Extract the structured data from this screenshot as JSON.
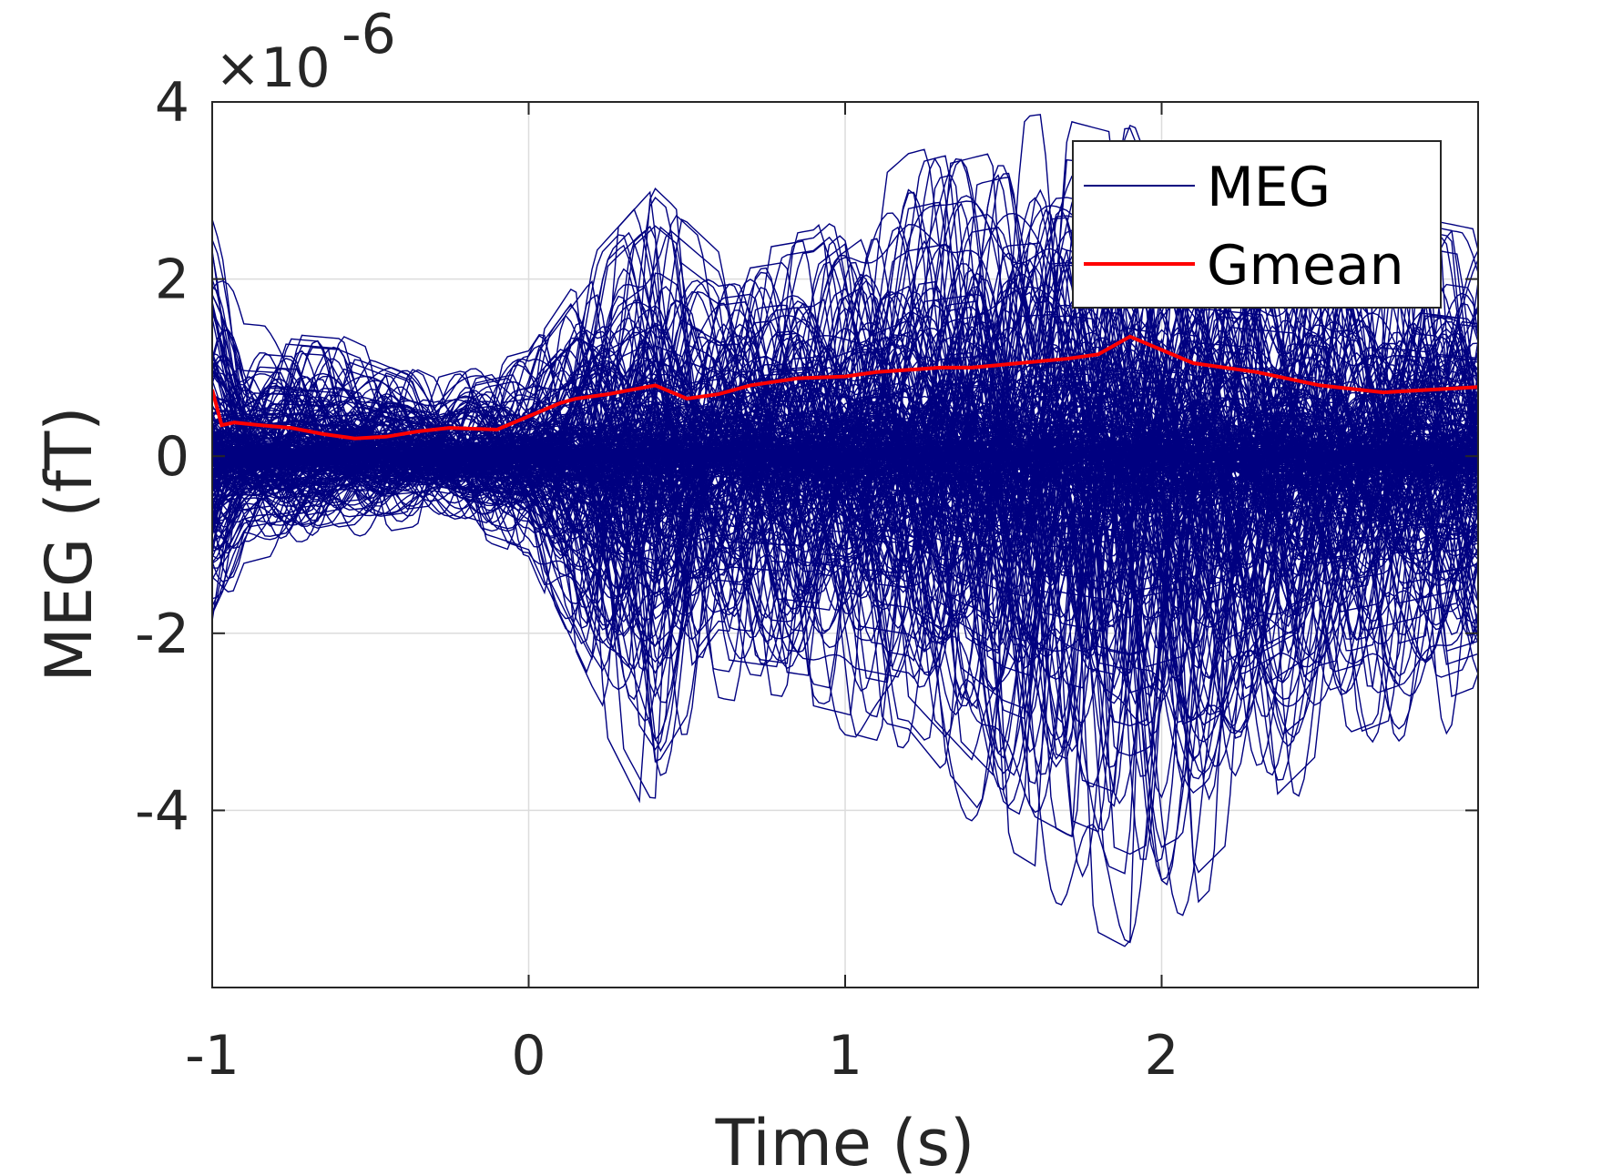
{
  "chart_data": {
    "type": "line",
    "xlabel": "Time (s)",
    "ylabel": "MEG (fT)",
    "y_exponent_label": "×10",
    "y_exponent_power": "-6",
    "xlim": [
      -1,
      3
    ],
    "ylim": [
      -6,
      4
    ],
    "x_ticks": [
      -1,
      0,
      1,
      2
    ],
    "x_tick_labels": [
      "-1",
      "0",
      "1",
      "2"
    ],
    "y_ticks": [
      -4,
      -2,
      0,
      2,
      4
    ],
    "y_tick_labels": [
      "-4",
      "-2",
      "0",
      "2",
      "4"
    ],
    "grid": true,
    "legend_position": "top-right",
    "legend": {
      "meg_label": "MEG",
      "gmean_label": "Gmean"
    },
    "colors": {
      "meg": "#000080",
      "gmean": "#ff0000",
      "grid": "#dcdcdc",
      "axis": "#262626"
    },
    "series": [
      {
        "name": "Gmean",
        "x": [
          -1.0,
          -0.97,
          -0.93,
          -0.85,
          -0.75,
          -0.65,
          -0.55,
          -0.45,
          -0.35,
          -0.25,
          -0.1,
          0.0,
          0.1,
          0.15,
          0.25,
          0.4,
          0.5,
          0.6,
          0.7,
          0.85,
          1.0,
          1.1,
          1.3,
          1.4,
          1.55,
          1.7,
          1.8,
          1.9,
          2.0,
          2.1,
          2.3,
          2.5,
          2.7,
          3.0
        ],
        "y": [
          0.75,
          0.35,
          0.38,
          0.35,
          0.32,
          0.25,
          0.2,
          0.22,
          0.28,
          0.32,
          0.3,
          0.45,
          0.6,
          0.65,
          0.7,
          0.8,
          0.65,
          0.7,
          0.8,
          0.88,
          0.9,
          0.95,
          1.0,
          1.0,
          1.05,
          1.1,
          1.15,
          1.35,
          1.2,
          1.05,
          0.95,
          0.8,
          0.72,
          0.78
        ]
      },
      {
        "name": "MEG",
        "envelope_time": [
          -1.0,
          -0.9,
          -0.6,
          -0.3,
          0.0,
          0.2,
          0.4,
          0.6,
          0.9,
          1.2,
          1.5,
          1.7,
          1.9,
          2.1,
          2.5,
          3.0
        ],
        "envelope_upper": [
          2.7,
          1.5,
          1.4,
          0.9,
          1.2,
          2.3,
          3.1,
          2.4,
          2.6,
          3.6,
          3.9,
          4.0,
          3.8,
          3.5,
          3.2,
          2.8
        ],
        "envelope_lower": [
          -2.3,
          -1.3,
          -1.0,
          -0.8,
          -1.2,
          -3.0,
          -4.5,
          -3.0,
          -3.2,
          -3.5,
          -5.0,
          -5.5,
          -5.9,
          -5.4,
          -3.8,
          -3.0
        ],
        "trace_count": 300
      }
    ]
  }
}
